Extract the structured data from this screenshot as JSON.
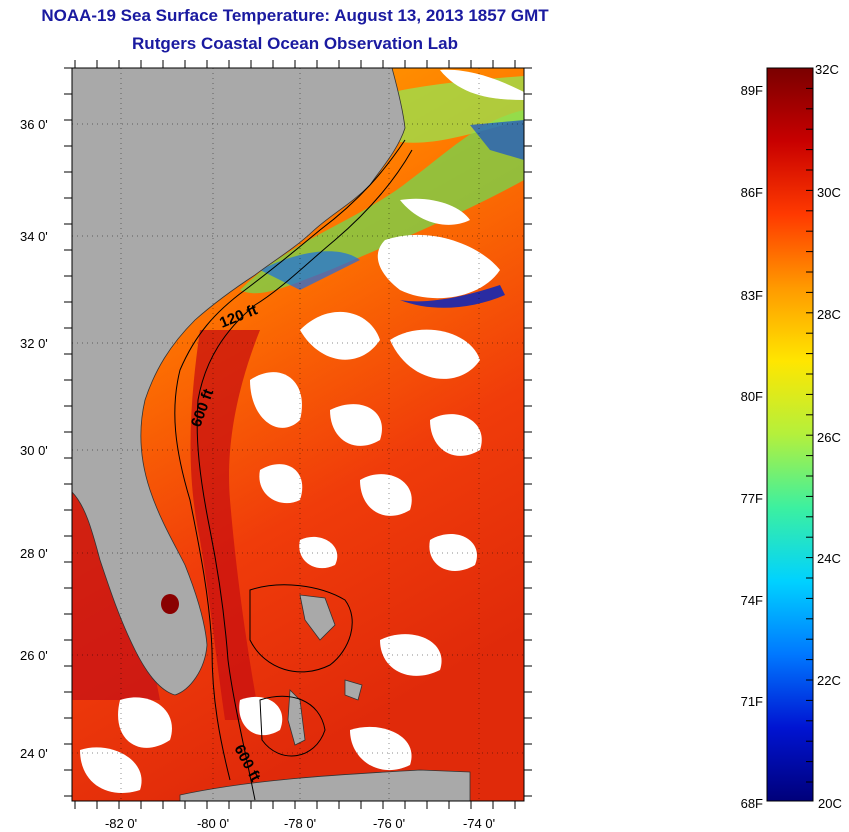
{
  "title": "NOAA-19 Sea Surface Temperature:  August 13, 2013 1857 GMT",
  "subtitle": "Rutgers Coastal Ocean Observation Lab",
  "map": {
    "lat_ticks": [
      {
        "value": 36,
        "label": "36 0'"
      },
      {
        "value": 34,
        "label": "34 0'"
      },
      {
        "value": 32,
        "label": "32 0'"
      },
      {
        "value": 30,
        "label": "30 0'"
      },
      {
        "value": 28,
        "label": "28 0'"
      },
      {
        "value": 26,
        "label": "26 0'"
      },
      {
        "value": 24,
        "label": "24 0'"
      }
    ],
    "lon_ticks": [
      {
        "value": -82,
        "label": "-82 0'"
      },
      {
        "value": -80,
        "label": "-80 0'"
      },
      {
        "value": -78,
        "label": "-78 0'"
      },
      {
        "value": -76,
        "label": "-76 0'"
      },
      {
        "value": -74,
        "label": "-74 0'"
      }
    ],
    "contour_labels": [
      "120 ft",
      "600 ft",
      "600 ft"
    ],
    "land_color": "#a9a9a9"
  },
  "colorbar": {
    "celsius_labels": [
      "32C",
      "30C",
      "28C",
      "26C",
      "24C",
      "22C",
      "20C"
    ],
    "fahrenheit_labels": [
      "89F",
      "86F",
      "83F",
      "80F",
      "77F",
      "74F",
      "71F",
      "68F"
    ],
    "colors": [
      "#7a0000",
      "#c80000",
      "#ff3a00",
      "#ff9a00",
      "#ffe600",
      "#b4f03c",
      "#3cf0a0",
      "#00d2ff",
      "#0078ff",
      "#0014d2",
      "#00007a"
    ]
  }
}
